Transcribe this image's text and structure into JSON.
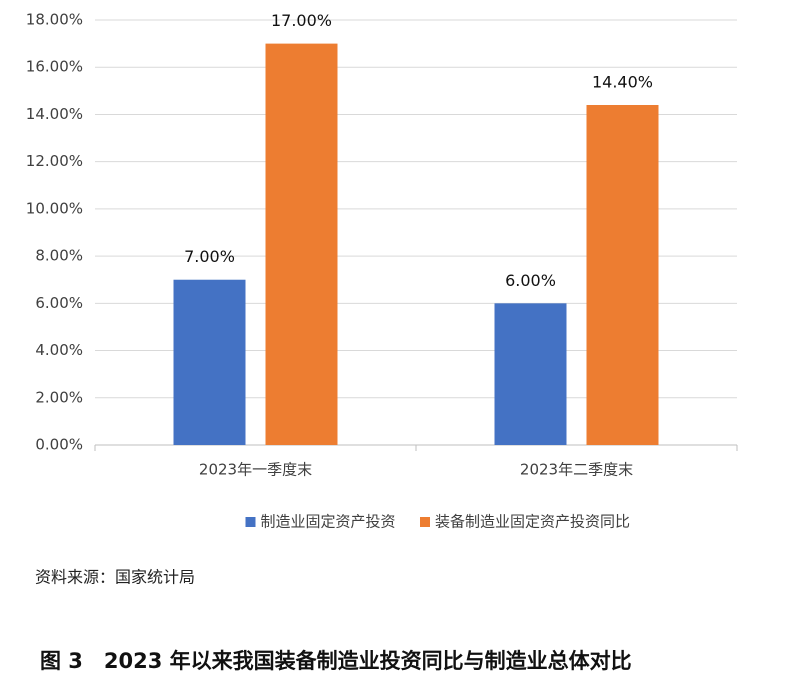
{
  "chart_data": {
    "type": "bar",
    "categories": [
      "2023年一季度末",
      "2023年二季度末"
    ],
    "series": [
      {
        "name": "制造业固定资产投资",
        "color": "#4472c4",
        "values": [
          7,
          6
        ],
        "value_labels": [
          "7.00%",
          "6.00%"
        ]
      },
      {
        "name": "装备制造业固定资产投资同比",
        "color": "#ed7d31",
        "values": [
          17,
          14.4
        ],
        "value_labels": [
          "17.00%",
          "14.40%"
        ]
      }
    ],
    "ylim": [
      0,
      18
    ],
    "yticks": [
      {
        "value": 0,
        "label": "0.00%"
      },
      {
        "value": 2,
        "label": "2.00%"
      },
      {
        "value": 4,
        "label": "4.00%"
      },
      {
        "value": 6,
        "label": "6.00%"
      },
      {
        "value": 8,
        "label": "8.00%"
      },
      {
        "value": 10,
        "label": "10.00%"
      },
      {
        "value": 12,
        "label": "12.00%"
      },
      {
        "value": 14,
        "label": "14.00%"
      },
      {
        "value": 16,
        "label": "16.00%"
      },
      {
        "value": 18,
        "label": "18.00%"
      }
    ],
    "grid": true,
    "legend": "bottom",
    "source": "资料来源：国家统计局",
    "caption": "图 3　2023 年以来我国装备制造业投资同比与制造业总体对比"
  }
}
